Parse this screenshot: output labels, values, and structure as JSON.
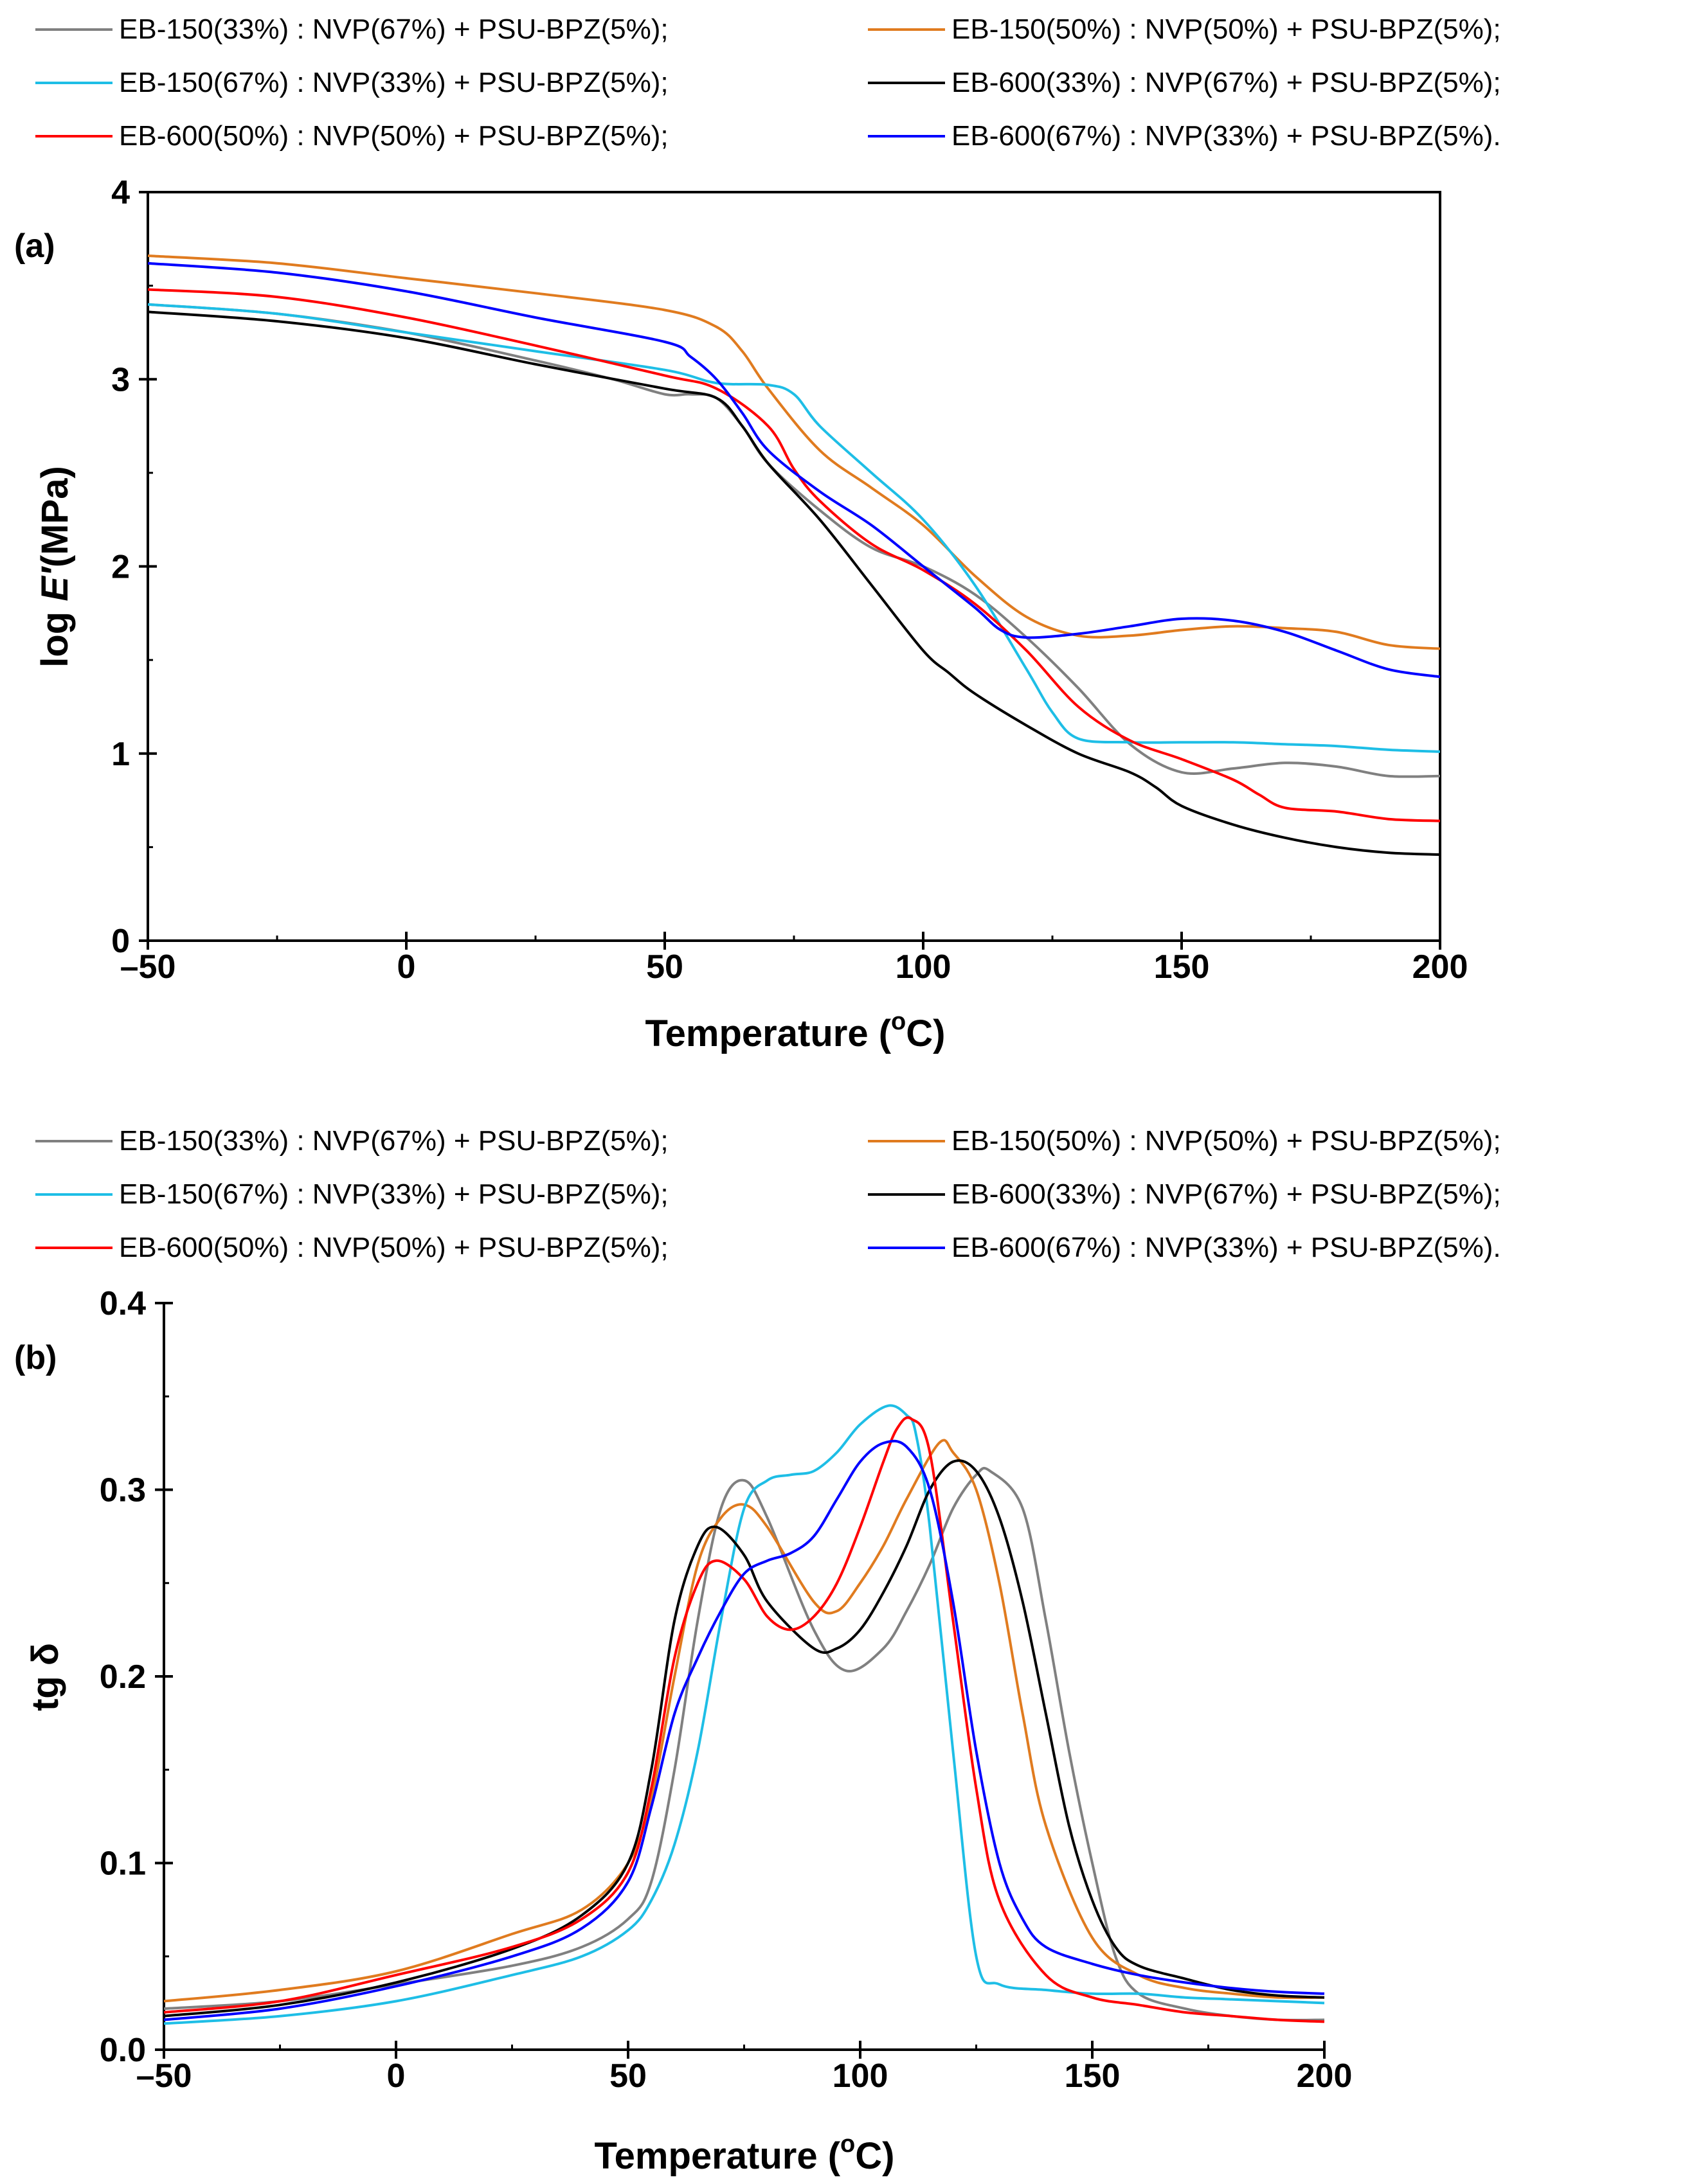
{
  "chart_data": [
    {
      "type": "line",
      "panel_label": "(a)",
      "xlabel": "Temperature (°C)",
      "xlabel_parts": {
        "prefix": "Temperature (",
        "sup": "o",
        "suffix": "C)"
      },
      "ylabel": "log E′(MPa)",
      "ylabel_parts": {
        "prefix": "log ",
        "italic": "E′",
        "suffix": "(MPa)"
      },
      "xlim": [
        -50,
        200
      ],
      "ylim": [
        0,
        4
      ],
      "xticks": [
        -50,
        0,
        50,
        100,
        150,
        200
      ],
      "xtick_labels": [
        "–50",
        "0",
        "50",
        "100",
        "150",
        "200"
      ],
      "yticks": [
        0,
        1,
        2,
        3,
        4
      ],
      "ytick_labels": [
        "0",
        "1",
        "2",
        "3",
        "4"
      ],
      "grid": false,
      "legend_position": "top",
      "series": [
        {
          "name": "EB-150(33%) : NVP(67%) + PSU-BPZ(5%);",
          "color": "#808080",
          "x": [
            -50,
            -25,
            0,
            25,
            40,
            50,
            55,
            60,
            65,
            70,
            80,
            90,
            100,
            110,
            120,
            130,
            140,
            150,
            160,
            170,
            180,
            190,
            200
          ],
          "y": [
            3.4,
            3.35,
            3.25,
            3.1,
            3.0,
            2.92,
            2.92,
            2.9,
            2.75,
            2.55,
            2.3,
            2.1,
            2.0,
            1.85,
            1.62,
            1.35,
            1.05,
            0.9,
            0.92,
            0.95,
            0.93,
            0.88,
            0.88
          ]
        },
        {
          "name": "EB-150(50%) : NVP(50%) + PSU-BPZ(5%);",
          "color": "#E07B1F",
          "x": [
            -50,
            -25,
            0,
            25,
            50,
            60,
            65,
            70,
            80,
            90,
            100,
            110,
            120,
            130,
            140,
            150,
            160,
            170,
            180,
            190,
            200
          ],
          "y": [
            3.66,
            3.62,
            3.54,
            3.46,
            3.37,
            3.28,
            3.15,
            2.95,
            2.62,
            2.42,
            2.22,
            1.95,
            1.73,
            1.63,
            1.63,
            1.66,
            1.68,
            1.67,
            1.65,
            1.58,
            1.56
          ]
        },
        {
          "name": "EB-150(67%) : NVP(33%) + PSU-BPZ(5%);",
          "color": "#1EBEE6",
          "x": [
            -50,
            -25,
            0,
            25,
            50,
            60,
            70,
            75,
            80,
            90,
            100,
            110,
            120,
            125,
            130,
            140,
            150,
            160,
            170,
            180,
            190,
            200
          ],
          "y": [
            3.4,
            3.35,
            3.25,
            3.15,
            3.05,
            2.98,
            2.97,
            2.92,
            2.75,
            2.5,
            2.25,
            1.9,
            1.45,
            1.22,
            1.08,
            1.06,
            1.06,
            1.06,
            1.05,
            1.04,
            1.02,
            1.01
          ]
        },
        {
          "name": "EB-600(33%) : NVP(67%) + PSU-BPZ(5%);",
          "color": "#000000",
          "x": [
            -50,
            -25,
            0,
            25,
            50,
            60,
            65,
            70,
            80,
            90,
            100,
            105,
            110,
            120,
            130,
            140,
            145,
            150,
            160,
            170,
            180,
            190,
            200
          ],
          "y": [
            3.36,
            3.31,
            3.22,
            3.08,
            2.95,
            2.9,
            2.75,
            2.55,
            2.25,
            1.9,
            1.55,
            1.43,
            1.32,
            1.15,
            1.0,
            0.9,
            0.82,
            0.72,
            0.62,
            0.55,
            0.5,
            0.47,
            0.46
          ]
        },
        {
          "name": "EB-600(50%) : NVP(50%) + PSU-BPZ(5%);",
          "color": "#FF0000",
          "x": [
            -50,
            -25,
            0,
            25,
            50,
            60,
            70,
            75,
            80,
            90,
            100,
            110,
            120,
            130,
            140,
            150,
            160,
            165,
            170,
            180,
            190,
            200
          ],
          "y": [
            3.48,
            3.44,
            3.33,
            3.18,
            3.02,
            2.95,
            2.75,
            2.52,
            2.35,
            2.12,
            1.98,
            1.8,
            1.55,
            1.25,
            1.07,
            0.97,
            0.86,
            0.78,
            0.71,
            0.69,
            0.65,
            0.64
          ]
        },
        {
          "name": "EB-600(67%) : NVP(33%) + PSU-BPZ(5%).",
          "color": "#0000FF",
          "x": [
            -50,
            -25,
            0,
            25,
            50,
            55,
            60,
            65,
            70,
            80,
            90,
            100,
            110,
            115,
            120,
            130,
            140,
            150,
            160,
            170,
            180,
            190,
            200
          ],
          "y": [
            3.62,
            3.57,
            3.47,
            3.33,
            3.2,
            3.12,
            3.0,
            2.82,
            2.62,
            2.4,
            2.22,
            2.0,
            1.78,
            1.66,
            1.62,
            1.64,
            1.68,
            1.72,
            1.71,
            1.65,
            1.55,
            1.45,
            1.41
          ]
        }
      ]
    },
    {
      "type": "line",
      "panel_label": "(b)",
      "xlabel": "Temperature (°C)",
      "xlabel_parts": {
        "prefix": "Temperature (",
        "sup": "o",
        "suffix": "C)"
      },
      "ylabel": "tg δ",
      "xlim": [
        -50,
        200
      ],
      "ylim": [
        0.0,
        0.4
      ],
      "xticks": [
        -50,
        0,
        50,
        100,
        150,
        200
      ],
      "xtick_labels": [
        "–50",
        "0",
        "50",
        "100",
        "150",
        "200"
      ],
      "yticks": [
        0.0,
        0.1,
        0.2,
        0.3,
        0.4
      ],
      "ytick_labels": [
        "0.0",
        "0.1",
        "0.2",
        "0.3",
        "0.4"
      ],
      "grid": false,
      "legend_position": "top",
      "series": [
        {
          "name": "EB-150(33%) : NVP(67%) + PSU-BPZ(5%);",
          "color": "#808080",
          "x": [
            -50,
            -25,
            0,
            25,
            40,
            50,
            55,
            60,
            65,
            70,
            75,
            80,
            90,
            97,
            105,
            110,
            115,
            120,
            125,
            128,
            135,
            140,
            145,
            150,
            155,
            160,
            170,
            180,
            190,
            200
          ],
          "y": [
            0.022,
            0.026,
            0.035,
            0.045,
            0.055,
            0.07,
            0.09,
            0.15,
            0.23,
            0.29,
            0.305,
            0.285,
            0.225,
            0.203,
            0.215,
            0.235,
            0.26,
            0.29,
            0.308,
            0.31,
            0.29,
            0.23,
            0.16,
            0.1,
            0.05,
            0.03,
            0.022,
            0.018,
            0.016,
            0.016
          ]
        },
        {
          "name": "EB-150(50%) : NVP(50%) + PSU-BPZ(5%);",
          "color": "#E07B1F",
          "x": [
            -50,
            -25,
            0,
            25,
            40,
            50,
            55,
            60,
            65,
            70,
            75,
            80,
            90,
            95,
            100,
            105,
            110,
            117,
            120,
            125,
            130,
            135,
            140,
            150,
            160,
            170,
            180,
            190,
            200
          ],
          "y": [
            0.026,
            0.032,
            0.042,
            0.062,
            0.075,
            0.1,
            0.135,
            0.2,
            0.26,
            0.285,
            0.292,
            0.28,
            0.24,
            0.235,
            0.25,
            0.27,
            0.295,
            0.325,
            0.32,
            0.3,
            0.25,
            0.18,
            0.12,
            0.06,
            0.04,
            0.033,
            0.03,
            0.028,
            0.028
          ]
        },
        {
          "name": "EB-150(67%) : NVP(33%) + PSU-BPZ(5%);",
          "color": "#1EBEE6",
          "x": [
            -50,
            -25,
            0,
            25,
            40,
            50,
            55,
            60,
            65,
            70,
            75,
            80,
            85,
            90,
            95,
            100,
            106,
            110,
            112,
            115,
            120,
            125,
            130,
            140,
            150,
            160,
            170,
            180,
            190,
            200
          ],
          "y": [
            0.014,
            0.018,
            0.026,
            0.04,
            0.05,
            0.064,
            0.08,
            0.11,
            0.16,
            0.23,
            0.29,
            0.305,
            0.308,
            0.31,
            0.32,
            0.335,
            0.345,
            0.34,
            0.33,
            0.28,
            0.16,
            0.05,
            0.035,
            0.032,
            0.03,
            0.03,
            0.028,
            0.027,
            0.026,
            0.025
          ]
        },
        {
          "name": "EB-600(33%) : NVP(67%) + PSU-BPZ(5%);",
          "color": "#000000",
          "x": [
            -50,
            -25,
            0,
            25,
            40,
            50,
            55,
            60,
            65,
            69,
            75,
            80,
            90,
            95,
            100,
            105,
            110,
            115,
            120,
            125,
            130,
            135,
            140,
            145,
            150,
            155,
            160,
            170,
            180,
            190,
            200
          ],
          "y": [
            0.018,
            0.024,
            0.036,
            0.054,
            0.072,
            0.1,
            0.15,
            0.23,
            0.27,
            0.28,
            0.265,
            0.24,
            0.215,
            0.215,
            0.225,
            0.245,
            0.27,
            0.3,
            0.315,
            0.31,
            0.285,
            0.24,
            0.18,
            0.12,
            0.08,
            0.055,
            0.045,
            0.038,
            0.032,
            0.029,
            0.028
          ]
        },
        {
          "name": "EB-600(50%) : NVP(50%) + PSU-BPZ(5%);",
          "color": "#FF0000",
          "x": [
            -50,
            -25,
            0,
            25,
            40,
            50,
            55,
            60,
            65,
            69,
            75,
            80,
            85,
            90,
            95,
            100,
            105,
            108,
            111,
            115,
            120,
            125,
            130,
            140,
            150,
            160,
            170,
            180,
            190,
            200
          ],
          "y": [
            0.02,
            0.026,
            0.04,
            0.055,
            0.07,
            0.095,
            0.14,
            0.21,
            0.25,
            0.262,
            0.252,
            0.232,
            0.225,
            0.232,
            0.25,
            0.28,
            0.315,
            0.333,
            0.338,
            0.32,
            0.23,
            0.14,
            0.08,
            0.04,
            0.028,
            0.024,
            0.02,
            0.018,
            0.016,
            0.015
          ]
        },
        {
          "name": "EB-600(67%) : NVP(33%) + PSU-BPZ(5%).",
          "color": "#0000FF",
          "x": [
            -50,
            -25,
            0,
            25,
            40,
            50,
            55,
            60,
            65,
            70,
            75,
            80,
            85,
            90,
            95,
            100,
            105,
            110,
            115,
            120,
            125,
            130,
            135,
            140,
            150,
            160,
            170,
            180,
            190,
            200
          ],
          "y": [
            0.016,
            0.022,
            0.034,
            0.05,
            0.065,
            0.09,
            0.13,
            0.18,
            0.21,
            0.235,
            0.255,
            0.262,
            0.266,
            0.275,
            0.295,
            0.315,
            0.325,
            0.323,
            0.3,
            0.24,
            0.16,
            0.1,
            0.07,
            0.055,
            0.046,
            0.04,
            0.036,
            0.033,
            0.031,
            0.03
          ]
        }
      ]
    }
  ]
}
